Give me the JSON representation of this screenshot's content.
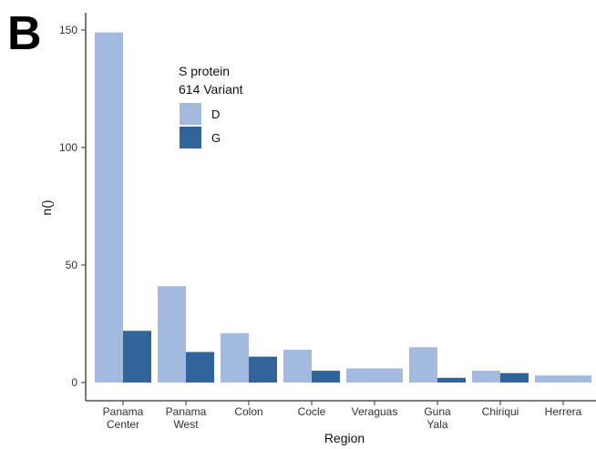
{
  "panel_label": "B",
  "chart_data": {
    "type": "bar",
    "title": "",
    "xlabel": "Region",
    "ylabel": "n()",
    "ylim": [
      0,
      155
    ],
    "yticks": [
      0,
      50,
      100,
      150
    ],
    "categories": [
      [
        "Panama",
        "Center"
      ],
      [
        "Panama",
        "West"
      ],
      [
        "Colon"
      ],
      [
        "Cocle"
      ],
      [
        "Veraguas"
      ],
      [
        "Guna",
        "Yala"
      ],
      [
        "Chiriqui"
      ],
      [
        "Herrera"
      ]
    ],
    "legend": {
      "title_lines": [
        "S protein",
        "614 Variant"
      ],
      "position": "top-left"
    },
    "series": [
      {
        "name": "D",
        "color": "#a3b9dd",
        "values": [
          149,
          41,
          21,
          14,
          6,
          15,
          5,
          3
        ]
      },
      {
        "name": "G",
        "color": "#31649a",
        "values": [
          22,
          13,
          11,
          5,
          null,
          2,
          4,
          null
        ]
      }
    ],
    "grid": false
  }
}
